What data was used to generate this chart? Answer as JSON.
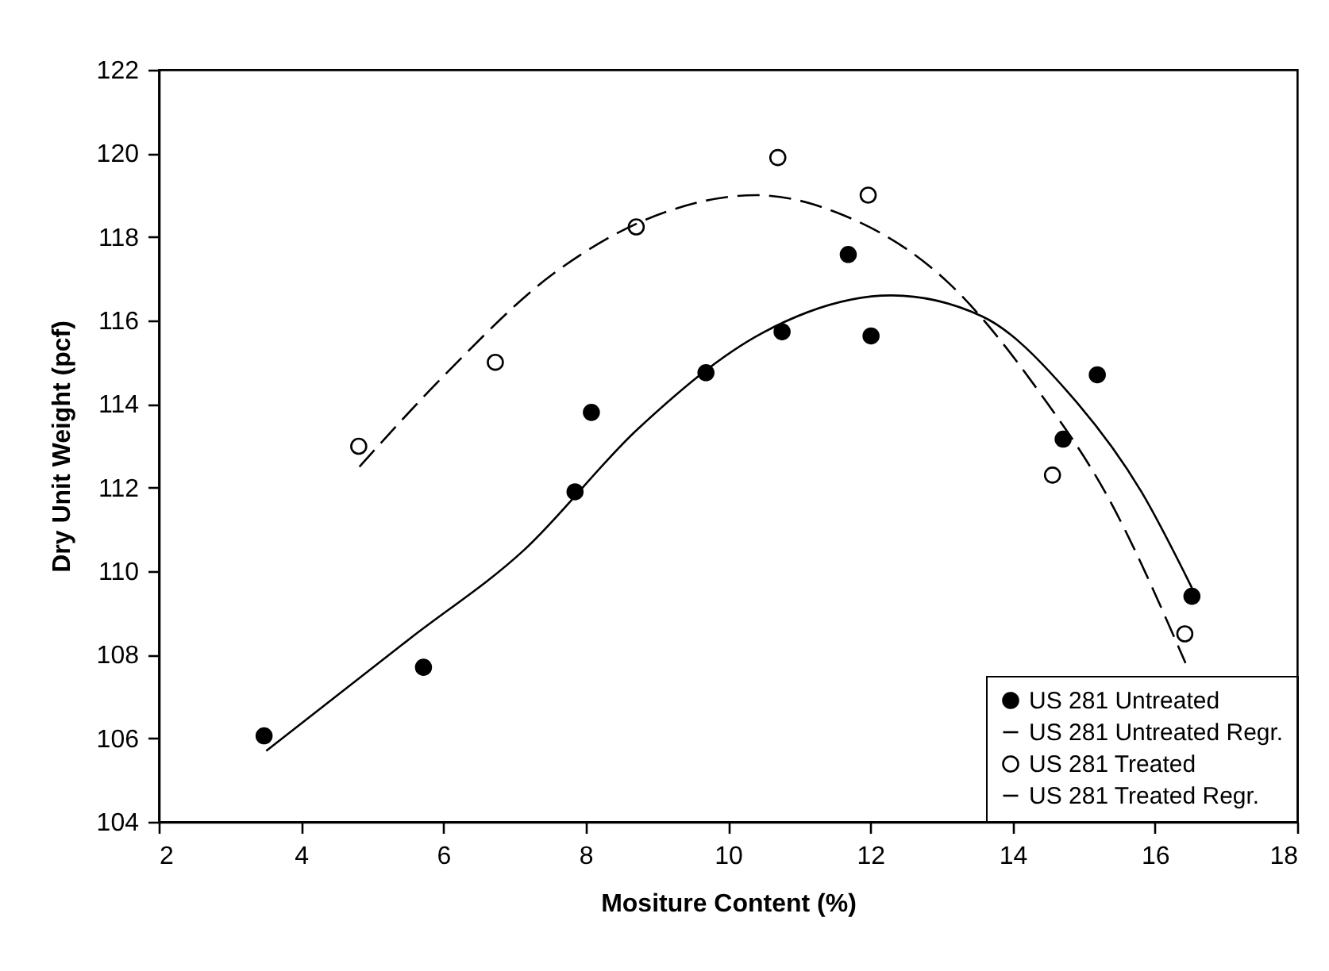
{
  "chart_data": {
    "type": "scatter",
    "xlabel": "Mositure Content (%)",
    "ylabel": "Dry Unit Weight (pcf)",
    "xlim": [
      2,
      18
    ],
    "xticks": [
      2,
      4,
      6,
      8,
      10,
      12,
      14,
      16,
      18
    ],
    "ylim": [
      104,
      122
    ],
    "yticks": [
      104,
      106,
      108,
      110,
      112,
      114,
      116,
      118,
      120,
      122
    ],
    "legend": "bottom right",
    "grid": false,
    "series": [
      {
        "name": "US 281 Untreated",
        "type": "scatter",
        "marker": "circle",
        "color": "#000000",
        "x": [
          3.48,
          5.72,
          7.85,
          8.08,
          9.69,
          10.76,
          11.69,
          12.01,
          14.71,
          15.19,
          16.52
        ],
        "values": [
          106.06,
          107.7,
          111.9,
          113.8,
          114.75,
          115.73,
          117.58,
          115.63,
          113.16,
          114.7,
          109.4
        ]
      },
      {
        "name": "US 281 Untreated Regr.",
        "type": "line",
        "line_style": "solid",
        "color": "#000000",
        "x": [
          3.51,
          5.54,
          7.13,
          8.73,
          10.48,
          12.3,
          13.57,
          14.77,
          15.81,
          16.52
        ],
        "values": [
          105.7,
          108.4,
          110.5,
          113.4,
          115.7,
          116.6,
          116.1,
          114.3,
          111.9,
          109.6
        ]
      },
      {
        "name": "US 281 Treated",
        "type": "scatter",
        "marker": "circle",
        "color": "#000000",
        "x": [
          4.81,
          6.73,
          8.71,
          10.7,
          11.97,
          14.56,
          16.42
        ],
        "values": [
          112.99,
          115.0,
          118.24,
          119.9,
          119.0,
          112.3,
          108.5
        ]
      },
      {
        "name": "US 281 Treated Regr.",
        "type": "line",
        "line_style": "dashed",
        "color": "#000000",
        "x": [
          4.82,
          6.02,
          7.53,
          9.13,
          10.39,
          11.58,
          13.1,
          14.37,
          15.33,
          16.43
        ],
        "values": [
          112.5,
          114.7,
          117.1,
          118.6,
          119.0,
          118.55,
          116.9,
          114.3,
          111.8,
          107.8
        ]
      }
    ]
  }
}
